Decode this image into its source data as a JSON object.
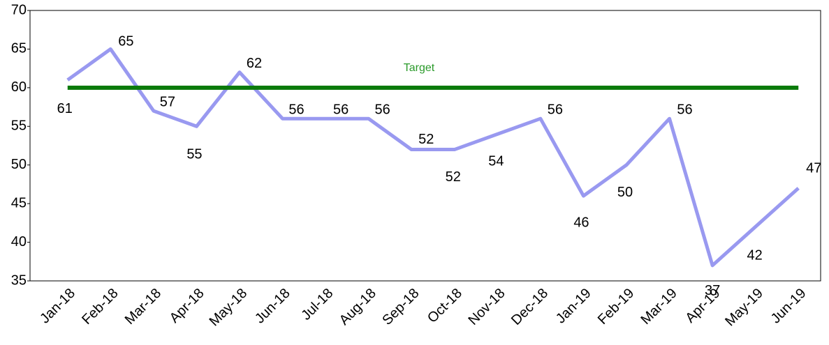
{
  "chart_data": {
    "type": "line",
    "categories": [
      "Jan-18",
      "Feb-18",
      "Mar-18",
      "Apr-18",
      "May-18",
      "Jun-18",
      "Jul-18",
      "Aug-18",
      "Sep-18",
      "Oct-18",
      "Nov-18",
      "Dec-18",
      "Jan-19",
      "Feb-19",
      "Mar-19",
      "Apr-19",
      "May-19",
      "Jun-19"
    ],
    "series": [
      {
        "color": "#9999f0",
        "values": [
          61,
          65,
          57,
          55,
          62,
          56,
          56,
          56,
          52,
          52,
          54,
          56,
          46,
          50,
          56,
          37,
          42,
          47
        ]
      },
      {
        "name": "Target",
        "color": "#0a7a0a",
        "values": [
          60,
          60,
          60,
          60,
          60,
          60,
          60,
          60,
          60,
          60,
          60,
          60,
          60,
          60,
          60,
          60,
          60,
          60
        ]
      }
    ],
    "ylim": [
      35,
      70
    ],
    "yticks": [
      35,
      40,
      45,
      50,
      55,
      60,
      65,
      70
    ],
    "grid": false
  }
}
